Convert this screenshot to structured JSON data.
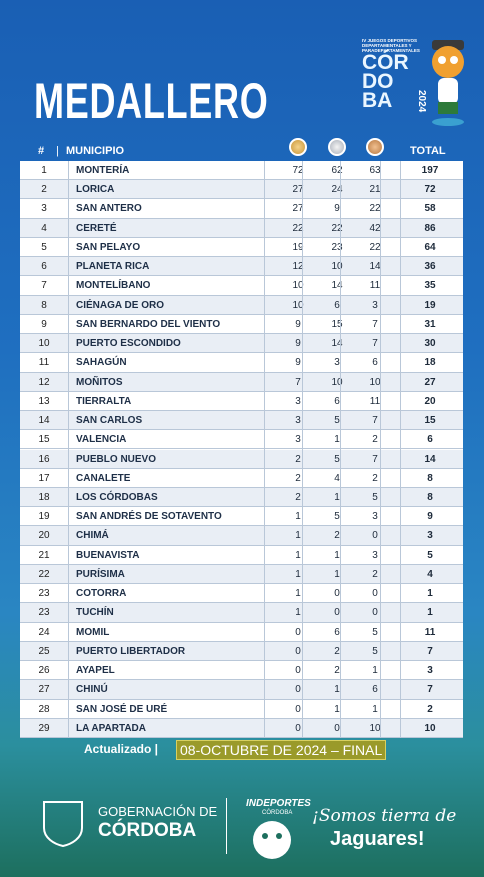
{
  "header": {
    "title": "MEDALLERO",
    "logo": {
      "event": "IV JUEGOS DEPORTIVOS DEPARTAMENTALES Y PARADEPARTAMENTALES",
      "name": [
        "CÓR",
        "DO",
        "BA"
      ],
      "year": "2024"
    }
  },
  "table": {
    "columns": {
      "rank": "#",
      "municipality": "MUNICIPIO",
      "total": "TOTAL"
    },
    "rows": [
      [
        1,
        "MONTERÍA",
        72,
        62,
        63,
        197
      ],
      [
        2,
        "LORICA",
        27,
        24,
        21,
        72
      ],
      [
        3,
        "SAN ANTERO",
        27,
        9,
        22,
        58
      ],
      [
        4,
        "CERETÉ",
        22,
        22,
        42,
        86
      ],
      [
        5,
        "SAN PELAYO",
        19,
        23,
        22,
        64
      ],
      [
        6,
        "PLANETA RICA",
        12,
        10,
        14,
        36
      ],
      [
        7,
        "MONTELÍBANO",
        10,
        14,
        11,
        35
      ],
      [
        8,
        "CIÉNAGA DE ORO",
        10,
        6,
        3,
        19
      ],
      [
        9,
        "SAN BERNARDO DEL VIENTO",
        9,
        15,
        7,
        31
      ],
      [
        10,
        "PUERTO ESCONDIDO",
        9,
        14,
        7,
        30
      ],
      [
        11,
        "SAHAGÚN",
        9,
        3,
        6,
        18
      ],
      [
        12,
        "MOÑITOS",
        7,
        10,
        10,
        27
      ],
      [
        13,
        "TIERRALTA",
        3,
        6,
        11,
        20
      ],
      [
        14,
        "SAN CARLOS",
        3,
        5,
        7,
        15
      ],
      [
        15,
        "VALENCIA",
        3,
        1,
        2,
        6
      ],
      [
        16,
        "PUEBLO NUEVO",
        2,
        5,
        7,
        14
      ],
      [
        17,
        "CANALETE",
        2,
        4,
        2,
        8
      ],
      [
        18,
        "LOS CÓRDOBAS",
        2,
        1,
        5,
        8
      ],
      [
        19,
        "SAN ANDRÉS DE SOTAVENTO",
        1,
        5,
        3,
        9
      ],
      [
        20,
        "CHIMÁ",
        1,
        2,
        0,
        3
      ],
      [
        21,
        "BUENAVISTA",
        1,
        1,
        3,
        5
      ],
      [
        22,
        "PURÍSIMA",
        1,
        1,
        2,
        4
      ],
      [
        23,
        "COTORRA",
        1,
        0,
        0,
        1
      ],
      [
        23,
        "TUCHÍN",
        1,
        0,
        0,
        1
      ],
      [
        24,
        "MOMIL",
        0,
        6,
        5,
        11
      ],
      [
        25,
        "PUERTO LIBERTADOR",
        0,
        2,
        5,
        7
      ],
      [
        26,
        "AYAPEL",
        0,
        2,
        1,
        3
      ],
      [
        27,
        "CHINÚ",
        0,
        1,
        6,
        7
      ],
      [
        28,
        "SAN JOSÉ DE URÉ",
        0,
        1,
        1,
        2
      ],
      [
        29,
        "LA APARTADA",
        0,
        0,
        10,
        10
      ]
    ]
  },
  "footer": {
    "updated_label": "Actualizado",
    "updated_value": "08-OCTUBRE DE 2024 – FINAL",
    "government": [
      "GOBERNACIÓN DE",
      "CÓRDOBA"
    ],
    "indeportes": [
      "INDEPORTES",
      "CÓRDOBA"
    ],
    "slogan": [
      "¡Somos tierra de",
      "Jaguares!"
    ]
  }
}
